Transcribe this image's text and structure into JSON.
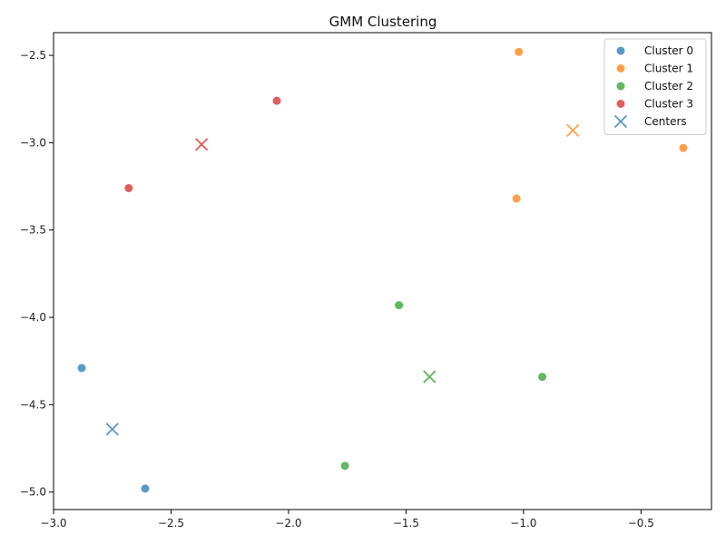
{
  "chart_data": {
    "type": "scatter",
    "title": "GMM Clustering",
    "xlabel": "",
    "ylabel": "",
    "xlim": [
      -3.0,
      -0.2
    ],
    "ylim": [
      -5.1,
      -2.37
    ],
    "x_ticks": [
      -3.0,
      -2.5,
      -2.0,
      -1.5,
      -1.0,
      -0.5
    ],
    "x_tick_labels": [
      "−3.0",
      "−2.5",
      "−2.0",
      "−1.5",
      "−1.0",
      "−0.5"
    ],
    "y_ticks": [
      -2.5,
      -3.0,
      -3.5,
      -4.0,
      -4.5,
      -5.0
    ],
    "y_tick_labels": [
      "−2.5",
      "−3.0",
      "−3.5",
      "−4.0",
      "−4.5",
      "−5.0"
    ],
    "grid": false,
    "legend_position": "top-right",
    "series": [
      {
        "name": "Cluster 0",
        "color": "#1f77b4",
        "marker": "circle",
        "points": [
          [
            -2.88,
            -4.29
          ],
          [
            -2.61,
            -4.98
          ]
        ]
      },
      {
        "name": "Cluster 1",
        "color": "#ff7f0e",
        "marker": "circle",
        "points": [
          [
            -1.02,
            -2.48
          ],
          [
            -1.03,
            -3.32
          ],
          [
            -0.32,
            -3.03
          ]
        ]
      },
      {
        "name": "Cluster 2",
        "color": "#2ca02c",
        "marker": "circle",
        "points": [
          [
            -1.53,
            -3.93
          ],
          [
            -0.92,
            -4.34
          ],
          [
            -1.76,
            -4.85
          ]
        ]
      },
      {
        "name": "Cluster 3",
        "color": "#d62728",
        "marker": "circle",
        "points": [
          [
            -2.05,
            -2.76
          ],
          [
            -2.68,
            -3.26
          ]
        ]
      },
      {
        "name": "Centers",
        "color": "#1f77b4",
        "marker": "x",
        "points": [
          [
            -2.75,
            -4.64
          ],
          [
            -0.79,
            -2.93
          ],
          [
            -1.4,
            -4.34
          ],
          [
            -2.37,
            -3.01
          ]
        ],
        "point_colors": [
          "#1f77b4",
          "#ff7f0e",
          "#2ca02c",
          "#d62728"
        ]
      }
    ]
  }
}
